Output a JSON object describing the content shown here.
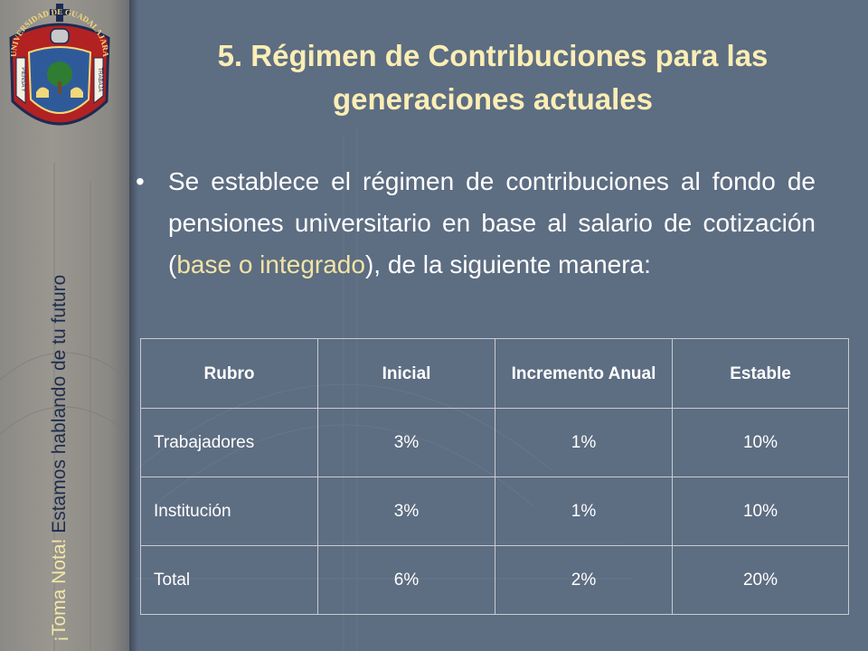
{
  "slide": {
    "title": "5. Régimen de Contribuciones para las generaciones actuales",
    "bullet_symbol": "•",
    "bullet_text": {
      "part1": "Se establece el régimen de contribuciones al fondo de pensiones universitario en base al salario de cotización (",
      "highlight1": "base o integrado",
      "part2": "), de la siguiente manera:"
    },
    "sidebar_tagline": {
      "accent": "¡Toma Nota!",
      "rest": " Estamos hablando de tu futuro"
    },
    "logo": {
      "ring_text": "UNIVERSIDAD DE GUADALAJARA",
      "left_ribbon": "PIENSA Y",
      "right_ribbon": "TRABAJA"
    }
  },
  "table": {
    "headers": [
      "Rubro",
      "Inicial",
      "Incremento Anual",
      "Estable"
    ],
    "rows": [
      [
        "Trabajadores",
        "3%",
        "1%",
        "10%"
      ],
      [
        "Institución",
        "3%",
        "1%",
        "10%"
      ],
      [
        "Total",
        "6%",
        "2%",
        "20%"
      ]
    ]
  },
  "colors": {
    "background": "#5d6d82",
    "title": "#fbeeb5",
    "highlight": "#f2e4a6",
    "sidebar_text": "#1e2c4d"
  }
}
